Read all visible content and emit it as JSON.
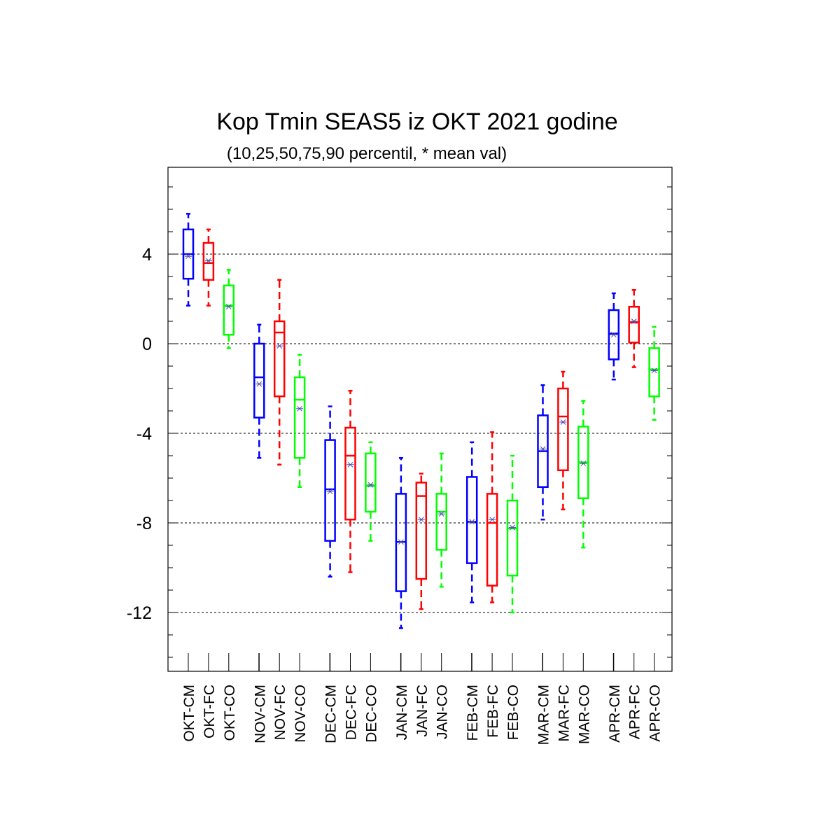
{
  "chart_data": {
    "type": "boxplot",
    "title": "Kop Tmin SEAS5 iz OKT 2021 godine",
    "subtitle": "(10,25,50,75,90 percentil, * mean val)",
    "ylim": [
      -14.5,
      7.8
    ],
    "yticks": [
      4,
      0,
      -4,
      -8,
      -12
    ],
    "ytick_labels": [
      "4",
      "0",
      "-4",
      "-8",
      "-12"
    ],
    "grid": "horizontal dashed at labeled ticks",
    "mean_marker": "*",
    "colors": {
      "CM": "#0000ff",
      "FC": "#ff0000",
      "CO": "#00ff00",
      "mean": "#4a4ab0"
    },
    "boxes": [
      {
        "label": "OKT-CM",
        "group": "CM",
        "p10": 1.7,
        "p25": 2.9,
        "p50": 4.0,
        "p75": 5.1,
        "p90": 5.8,
        "mean": 3.9
      },
      {
        "label": "OKT-FC",
        "group": "FC",
        "p10": 1.7,
        "p25": 2.85,
        "p50": 3.6,
        "p75": 4.5,
        "p90": 5.1,
        "mean": 3.7
      },
      {
        "label": "OKT-CO",
        "group": "CO",
        "p10": -0.2,
        "p25": 0.4,
        "p50": 1.7,
        "p75": 2.6,
        "p90": 3.3,
        "mean": 1.65
      },
      {
        "label": "NOV-CM",
        "group": "CM",
        "p10": -5.1,
        "p25": -3.3,
        "p50": -1.5,
        "p75": 0.0,
        "p90": 0.85,
        "mean": -1.8
      },
      {
        "label": "NOV-FC",
        "group": "FC",
        "p10": -5.4,
        "p25": -2.35,
        "p50": 0.5,
        "p75": 1.0,
        "p90": 2.85,
        "mean": -0.1
      },
      {
        "label": "NOV-CO",
        "group": "CO",
        "p10": -6.4,
        "p25": -5.1,
        "p50": -2.5,
        "p75": -1.5,
        "p90": -0.5,
        "mean": -2.9
      },
      {
        "label": "DEC-CM",
        "group": "CM",
        "p10": -10.4,
        "p25": -8.8,
        "p50": -6.5,
        "p75": -4.3,
        "p90": -2.8,
        "mean": -6.6
      },
      {
        "label": "DEC-FC",
        "group": "FC",
        "p10": -10.2,
        "p25": -7.85,
        "p50": -5.0,
        "p75": -3.75,
        "p90": -2.1,
        "mean": -5.4
      },
      {
        "label": "DEC-CO",
        "group": "CO",
        "p10": -8.8,
        "p25": -7.5,
        "p50": -6.35,
        "p75": -4.9,
        "p90": -4.4,
        "mean": -6.3
      },
      {
        "label": "JAN-CM",
        "group": "CM",
        "p10": -12.7,
        "p25": -11.05,
        "p50": -8.85,
        "p75": -6.7,
        "p90": -5.1,
        "mean": -8.85
      },
      {
        "label": "JAN-FC",
        "group": "FC",
        "p10": -11.85,
        "p25": -10.5,
        "p50": -6.8,
        "p75": -6.2,
        "p90": -5.8,
        "mean": -7.85
      },
      {
        "label": "JAN-CO",
        "group": "CO",
        "p10": -10.85,
        "p25": -9.2,
        "p50": -7.5,
        "p75": -6.7,
        "p90": -4.9,
        "mean": -7.6
      },
      {
        "label": "FEB-CM",
        "group": "CM",
        "p10": -11.55,
        "p25": -9.8,
        "p50": -7.95,
        "p75": -5.95,
        "p90": -4.4,
        "mean": -7.95
      },
      {
        "label": "FEB-FC",
        "group": "FC",
        "p10": -11.55,
        "p25": -10.8,
        "p50": -8.0,
        "p75": -6.7,
        "p90": -3.95,
        "mean": -7.85
      },
      {
        "label": "FEB-CO",
        "group": "CO",
        "p10": -12.0,
        "p25": -10.35,
        "p50": -8.25,
        "p75": -7.0,
        "p90": -5.0,
        "mean": -8.2
      },
      {
        "label": "MAR-CM",
        "group": "CM",
        "p10": -7.85,
        "p25": -6.4,
        "p50": -4.8,
        "p75": -3.2,
        "p90": -1.85,
        "mean": -4.7
      },
      {
        "label": "MAR-FC",
        "group": "FC",
        "p10": -7.4,
        "p25": -5.65,
        "p50": -3.25,
        "p75": -2.0,
        "p90": -1.25,
        "mean": -3.5
      },
      {
        "label": "MAR-CO",
        "group": "CO",
        "p10": -9.1,
        "p25": -6.9,
        "p50": -5.3,
        "p75": -3.7,
        "p90": -2.55,
        "mean": -5.35
      },
      {
        "label": "APR-CM",
        "group": "CM",
        "p10": -1.6,
        "p25": -0.7,
        "p50": 0.45,
        "p75": 1.5,
        "p90": 2.25,
        "mean": 0.4
      },
      {
        "label": "APR-FC",
        "group": "FC",
        "p10": -1.05,
        "p25": 0.05,
        "p50": 0.95,
        "p75": 1.65,
        "p90": 2.4,
        "mean": 1.0
      },
      {
        "label": "APR-CO",
        "group": "CO",
        "p10": -3.4,
        "p25": -2.35,
        "p50": -1.15,
        "p75": -0.2,
        "p90": 0.75,
        "mean": -1.2
      }
    ]
  }
}
